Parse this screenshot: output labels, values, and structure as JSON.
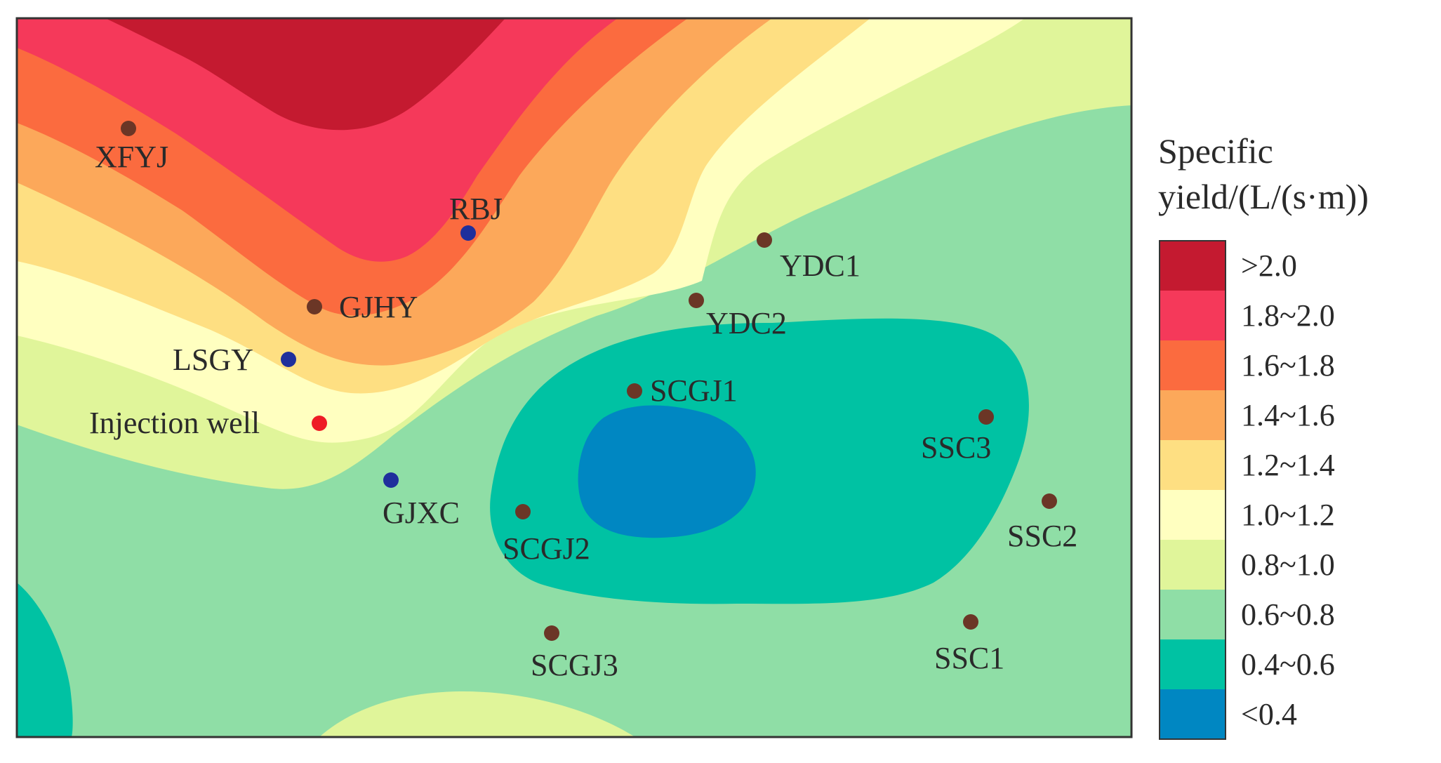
{
  "legend": {
    "title_line1": "Specific",
    "title_line2": "yield/(L/(s·m))",
    "classes": [
      {
        "label": ">2.0",
        "color": "#c41a30"
      },
      {
        "label": "1.8~2.0",
        "color": "#f5395a"
      },
      {
        "label": "1.6~1.8",
        "color": "#fb6b3f"
      },
      {
        "label": "1.4~1.6",
        "color": "#fca85a"
      },
      {
        "label": "1.2~1.4",
        "color": "#fedf82"
      },
      {
        "label": "1.0~1.2",
        "color": "#ffffc0"
      },
      {
        "label": "0.8~1.0",
        "color": "#e0f59a"
      },
      {
        "label": "0.6~0.8",
        "color": "#8fdea6"
      },
      {
        "label": "0.4~0.6",
        "color": "#00c2a3"
      },
      {
        "label": "<0.4",
        "color": "#0087c2"
      }
    ]
  },
  "marker_colors": {
    "brown": "#6b3626",
    "blue": "#1f2f9c",
    "red": "#ee1c25"
  },
  "wells": [
    {
      "name": "XFYJ",
      "color": "brown"
    },
    {
      "name": "RBJ",
      "color": "blue"
    },
    {
      "name": "GJHY",
      "color": "brown"
    },
    {
      "name": "LSGY",
      "color": "blue"
    },
    {
      "name": "Injection well",
      "color": "red"
    },
    {
      "name": "GJXC",
      "color": "blue"
    },
    {
      "name": "YDC1",
      "color": "brown"
    },
    {
      "name": "YDC2",
      "color": "brown"
    },
    {
      "name": "SCGJ1",
      "color": "brown"
    },
    {
      "name": "SCGJ2",
      "color": "brown"
    },
    {
      "name": "SCGJ3",
      "color": "brown"
    },
    {
      "name": "SSC3",
      "color": "brown"
    },
    {
      "name": "SSC2",
      "color": "brown"
    },
    {
      "name": "SSC1",
      "color": "brown"
    }
  ]
}
